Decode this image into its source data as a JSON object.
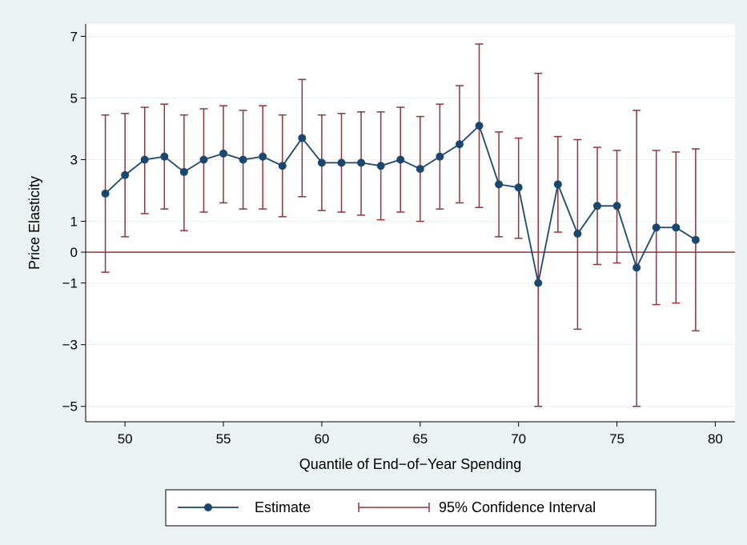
{
  "chart_data": {
    "type": "line",
    "xlabel": "Quantile of End−of−Year Spending",
    "ylabel": "Price Elasticity",
    "xlim": [
      48,
      81
    ],
    "ylim": [
      -5.5,
      7.4
    ],
    "xticks": [
      50,
      55,
      60,
      65,
      70,
      75,
      80
    ],
    "xtick_labels": [
      "50",
      "55",
      "60",
      "65",
      "70",
      "75",
      "80"
    ],
    "yticks": [
      7,
      5,
      3,
      1,
      0,
      -1,
      -3,
      -5
    ],
    "ytick_labels": [
      "7",
      "5",
      "3",
      "1",
      "0",
      "−1",
      "−3",
      "−5"
    ],
    "reference_line_y": 0,
    "grid": "horizontal",
    "legend_position": "bottom",
    "colors": {
      "estimate": "#1a476f",
      "ci": "#90353b",
      "reference": "#90353b",
      "grid": "#eaf2f3",
      "plot_bg": "#ffffff",
      "outer_bg": "#eaf2f3"
    },
    "x": [
      49,
      50,
      51,
      52,
      53,
      54,
      55,
      56,
      57,
      58,
      59,
      60,
      61,
      62,
      63,
      64,
      65,
      66,
      67,
      68,
      69,
      70,
      71,
      72,
      73,
      74,
      75,
      76,
      77,
      78,
      79
    ],
    "series": [
      {
        "name": "Estimate",
        "values": [
          1.9,
          2.5,
          3.0,
          3.1,
          2.6,
          3.0,
          3.2,
          3.0,
          3.1,
          2.8,
          3.7,
          2.9,
          2.9,
          2.9,
          2.8,
          3.0,
          2.7,
          3.1,
          3.5,
          4.1,
          2.2,
          2.1,
          -1.0,
          2.2,
          0.6,
          1.5,
          1.5,
          -0.5,
          0.8,
          0.8,
          0.4
        ]
      },
      {
        "name": "95% Confidence Interval",
        "lower": [
          -0.65,
          0.5,
          1.25,
          1.4,
          0.7,
          1.3,
          1.6,
          1.4,
          1.4,
          1.15,
          1.8,
          1.35,
          1.3,
          1.2,
          1.05,
          1.3,
          1.0,
          1.4,
          1.6,
          1.45,
          0.5,
          0.45,
          -5.0,
          0.65,
          -2.5,
          -0.4,
          -0.35,
          -5.0,
          -1.7,
          -1.65,
          -2.55
        ],
        "upper": [
          4.45,
          4.5,
          4.7,
          4.8,
          4.45,
          4.65,
          4.75,
          4.6,
          4.75,
          4.45,
          5.6,
          4.45,
          4.5,
          4.55,
          4.55,
          4.7,
          4.4,
          4.8,
          5.4,
          6.75,
          3.9,
          3.7,
          5.8,
          3.75,
          3.65,
          3.4,
          3.3,
          4.6,
          3.3,
          3.25,
          3.35
        ]
      }
    ]
  }
}
